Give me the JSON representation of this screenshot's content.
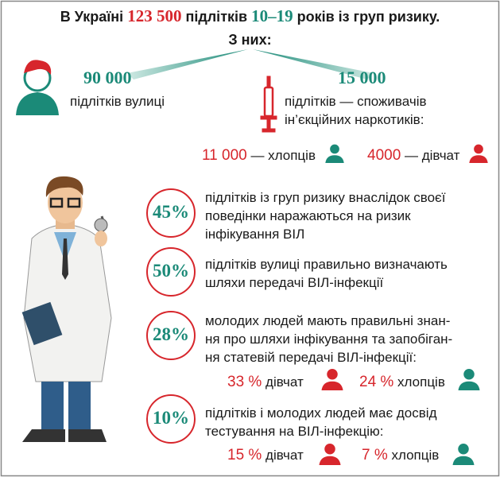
{
  "header": {
    "prefix": "В Україні",
    "total": "123 500",
    "middle": "підлітків",
    "ages": "10–19",
    "suffix": "років із груп ризику.",
    "sub": "З них:"
  },
  "groups": [
    {
      "number": "90 000",
      "lines": [
        "підлітків вулиці"
      ]
    },
    {
      "number": "15 000",
      "lines": [
        "підлітків — споживачів",
        "ін’єкційних наркотиків:"
      ]
    }
  ],
  "split": [
    {
      "number": "11 000",
      "text": "— хлопців"
    },
    {
      "number": "4000",
      "text": "— дівчат"
    }
  ],
  "facts": [
    {
      "percent": "45%",
      "lines": [
        "підлітків із груп ризику внаслідок своєї",
        "поведінки наражаються на ризик",
        "інфікування ВІЛ"
      ]
    },
    {
      "percent": "50%",
      "lines": [
        "підлітків вулиці правильно визначають",
        "шляхи передачі ВІЛ-інфекції"
      ]
    },
    {
      "percent": "28%",
      "lines": [
        "молодих людей  мають правильні знан-",
        "ня про шляхи інфікування та запобіган-",
        "ня статевій передачі ВІЛ-інфекції:"
      ],
      "sub": [
        {
          "percent": "33 %",
          "label": "дівчат"
        },
        {
          "percent": "24 %",
          "label": "хлопців"
        }
      ]
    },
    {
      "percent": "10%",
      "lines": [
        "підлітків і молодих людей має досвід",
        "тестування на ВІЛ-інфекцію:"
      ],
      "sub": [
        {
          "percent": "15 %",
          "label": "дівчат"
        },
        {
          "percent": "7 %",
          "label": "хлопців"
        }
      ]
    }
  ]
}
